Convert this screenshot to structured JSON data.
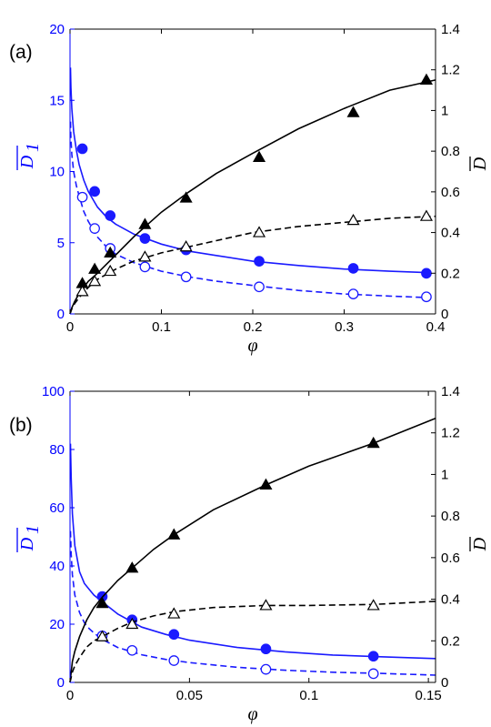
{
  "colors": {
    "left_axis": "#0000ff",
    "right_axis": "#000000",
    "blue_series": "#1a1aff",
    "black_series": "#000000"
  },
  "chart_data": [
    {
      "type": "line",
      "panel_label": "(a)",
      "xlabel": "φ",
      "ylabel_left_main": "D",
      "ylabel_left_sub": "1",
      "ylabel_right": "D",
      "xlim": [
        0,
        0.4
      ],
      "ylim_left": [
        0,
        20
      ],
      "ylim_right": [
        0,
        1.4
      ],
      "x_ticks": [
        0,
        0.1,
        0.2,
        0.3,
        0.4
      ],
      "x_tick_labels": [
        "0",
        "0.1",
        "0.2",
        "0.3",
        "0.4"
      ],
      "y_left_ticks": [
        0,
        5,
        10,
        15,
        20
      ],
      "y_left_tick_labels": [
        "0",
        "5",
        "10",
        "15",
        "20"
      ],
      "y_right_ticks": [
        0,
        0.2,
        0.4,
        0.6,
        0.8,
        1,
        1.2,
        1.4
      ],
      "y_right_tick_labels": [
        "0",
        "0.2",
        "0.4",
        "0.6",
        "0.8",
        "1",
        "1.2",
        "1.4"
      ],
      "grid": false,
      "series": [
        {
          "axis": "left",
          "style": "solid",
          "color": "blue",
          "curve_x": [
            0.0005,
            0.001,
            0.002,
            0.004,
            0.007,
            0.01,
            0.015,
            0.02,
            0.03,
            0.04,
            0.05,
            0.07,
            0.1,
            0.13,
            0.16,
            0.2,
            0.25,
            0.3,
            0.35,
            0.39
          ],
          "curve_y": [
            17.3,
            15.9,
            14.4,
            12.8,
            11.5,
            10.5,
            9.4,
            8.6,
            7.5,
            6.8,
            6.3,
            5.6,
            4.9,
            4.4,
            4.1,
            3.7,
            3.4,
            3.15,
            3.0,
            2.9
          ],
          "markers": "filled-circle",
          "marker_x": [
            0.0135,
            0.027,
            0.044,
            0.082,
            0.127,
            0.207,
            0.31,
            0.39
          ],
          "marker_y": [
            11.6,
            8.6,
            6.9,
            5.3,
            4.5,
            3.7,
            3.2,
            2.85
          ]
        },
        {
          "axis": "left",
          "style": "dashed",
          "color": "blue",
          "curve_x": [
            0.0005,
            0.001,
            0.002,
            0.004,
            0.007,
            0.01,
            0.015,
            0.02,
            0.03,
            0.04,
            0.05,
            0.07,
            0.1,
            0.13,
            0.16,
            0.2,
            0.25,
            0.3,
            0.35,
            0.39
          ],
          "curve_y": [
            13.5,
            12.3,
            11.2,
            10.0,
            9.0,
            8.3,
            7.2,
            6.5,
            5.4,
            4.7,
            4.2,
            3.6,
            3.0,
            2.6,
            2.3,
            2.0,
            1.65,
            1.4,
            1.25,
            1.15
          ],
          "markers": "open-circle",
          "marker_x": [
            0.0135,
            0.027,
            0.044,
            0.082,
            0.127,
            0.207,
            0.31,
            0.39
          ],
          "marker_y": [
            8.2,
            6.0,
            4.6,
            3.3,
            2.6,
            1.9,
            1.4,
            1.2
          ]
        },
        {
          "axis": "right",
          "style": "solid",
          "color": "black",
          "curve_x": [
            0,
            0.002,
            0.005,
            0.01,
            0.02,
            0.03,
            0.05,
            0.07,
            0.1,
            0.13,
            0.16,
            0.2,
            0.25,
            0.3,
            0.35,
            0.4
          ],
          "curve_y": [
            0,
            0.03,
            0.06,
            0.1,
            0.16,
            0.2,
            0.29,
            0.38,
            0.5,
            0.6,
            0.69,
            0.79,
            0.91,
            1.01,
            1.1,
            1.15
          ],
          "markers": "filled-triangle",
          "marker_x": [
            0.0135,
            0.027,
            0.044,
            0.082,
            0.127,
            0.207,
            0.31,
            0.39
          ],
          "marker_y": [
            0.15,
            0.22,
            0.3,
            0.44,
            0.57,
            0.77,
            0.99,
            1.15
          ]
        },
        {
          "axis": "right",
          "style": "dashed",
          "color": "black",
          "curve_x": [
            0,
            0.002,
            0.005,
            0.01,
            0.02,
            0.03,
            0.05,
            0.07,
            0.1,
            0.13,
            0.16,
            0.2,
            0.25,
            0.3,
            0.35,
            0.4
          ],
          "curve_y": [
            0,
            0.025,
            0.05,
            0.08,
            0.13,
            0.17,
            0.22,
            0.26,
            0.3,
            0.33,
            0.36,
            0.4,
            0.43,
            0.45,
            0.47,
            0.48
          ],
          "markers": "open-triangle",
          "marker_x": [
            0.0135,
            0.027,
            0.044,
            0.082,
            0.127,
            0.207,
            0.31,
            0.39
          ],
          "marker_y": [
            0.11,
            0.16,
            0.21,
            0.28,
            0.33,
            0.4,
            0.46,
            0.48
          ]
        }
      ]
    },
    {
      "type": "line",
      "panel_label": "(b)",
      "xlabel": "φ",
      "ylabel_left_main": "D",
      "ylabel_left_sub": "1",
      "ylabel_right": "D",
      "xlim": [
        0,
        0.153
      ],
      "ylim_left": [
        0,
        100
      ],
      "ylim_right": [
        0,
        1.4
      ],
      "x_ticks": [
        0,
        0.05,
        0.1,
        0.15
      ],
      "x_tick_labels": [
        "0",
        "0.05",
        "0.1",
        "0.15"
      ],
      "y_left_ticks": [
        0,
        20,
        40,
        60,
        80,
        100
      ],
      "y_left_tick_labels": [
        "0",
        "20",
        "40",
        "60",
        "80",
        "100"
      ],
      "y_right_ticks": [
        0,
        0.2,
        0.4,
        0.6,
        0.8,
        1,
        1.2,
        1.4
      ],
      "y_right_tick_labels": [
        "0",
        "0.2",
        "0.4",
        "0.6",
        "0.8",
        "1",
        "1.2",
        "1.4"
      ],
      "grid": false,
      "series": [
        {
          "axis": "left",
          "style": "solid",
          "color": "blue",
          "curve_x": [
            0.0002,
            0.0005,
            0.001,
            0.002,
            0.004,
            0.006,
            0.008,
            0.01,
            0.013,
            0.02,
            0.03,
            0.04,
            0.05,
            0.07,
            0.09,
            0.11,
            0.13,
            0.153
          ],
          "curve_y": [
            82,
            70,
            58,
            47,
            38,
            34,
            32,
            30,
            28,
            23.5,
            19,
            16.5,
            14.5,
            12,
            10.5,
            9.4,
            8.8,
            8.2
          ],
          "markers": "filled-circle",
          "marker_x": [
            0.0135,
            0.026,
            0.0435,
            0.082,
            0.127
          ],
          "marker_y": [
            29.5,
            21.5,
            16.5,
            11.5,
            9.0
          ]
        },
        {
          "axis": "left",
          "style": "dashed",
          "color": "blue",
          "curve_x": [
            0.0002,
            0.0005,
            0.001,
            0.002,
            0.004,
            0.006,
            0.008,
            0.01,
            0.013,
            0.02,
            0.03,
            0.04,
            0.05,
            0.07,
            0.09,
            0.11,
            0.13,
            0.153
          ],
          "curve_y": [
            52,
            44,
            37,
            30,
            24,
            20.5,
            18.5,
            17,
            15,
            12,
            9.5,
            7.9,
            6.8,
            5.2,
            4.2,
            3.5,
            3.1,
            2.5
          ],
          "markers": "open-circle",
          "marker_x": [
            0.0135,
            0.026,
            0.0435,
            0.082,
            0.127
          ],
          "marker_y": [
            16.0,
            11.0,
            7.5,
            4.5,
            3.0
          ]
        },
        {
          "axis": "right",
          "style": "solid",
          "color": "black",
          "curve_x": [
            0,
            0.001,
            0.002,
            0.004,
            0.007,
            0.01,
            0.0135,
            0.02,
            0.026,
            0.035,
            0.0435,
            0.06,
            0.082,
            0.1,
            0.127,
            0.153
          ],
          "curve_y": [
            0,
            0.1,
            0.15,
            0.22,
            0.3,
            0.36,
            0.41,
            0.49,
            0.55,
            0.64,
            0.71,
            0.83,
            0.95,
            1.04,
            1.15,
            1.27
          ],
          "markers": "filled-triangle",
          "marker_x": [
            0.0135,
            0.026,
            0.0435,
            0.082,
            0.127
          ],
          "marker_y": [
            0.38,
            0.55,
            0.71,
            0.95,
            1.15
          ]
        },
        {
          "axis": "right",
          "style": "dashed",
          "color": "black",
          "curve_x": [
            0,
            0.001,
            0.002,
            0.004,
            0.007,
            0.01,
            0.0135,
            0.02,
            0.026,
            0.035,
            0.0435,
            0.06,
            0.082,
            0.1,
            0.127,
            0.153
          ],
          "curve_y": [
            0,
            0.05,
            0.08,
            0.12,
            0.17,
            0.2,
            0.22,
            0.26,
            0.29,
            0.32,
            0.34,
            0.36,
            0.37,
            0.37,
            0.375,
            0.39
          ],
          "markers": "open-triangle",
          "marker_x": [
            0.0135,
            0.026,
            0.0435,
            0.082,
            0.127
          ],
          "marker_y": [
            0.22,
            0.28,
            0.33,
            0.37,
            0.37
          ]
        }
      ]
    }
  ]
}
